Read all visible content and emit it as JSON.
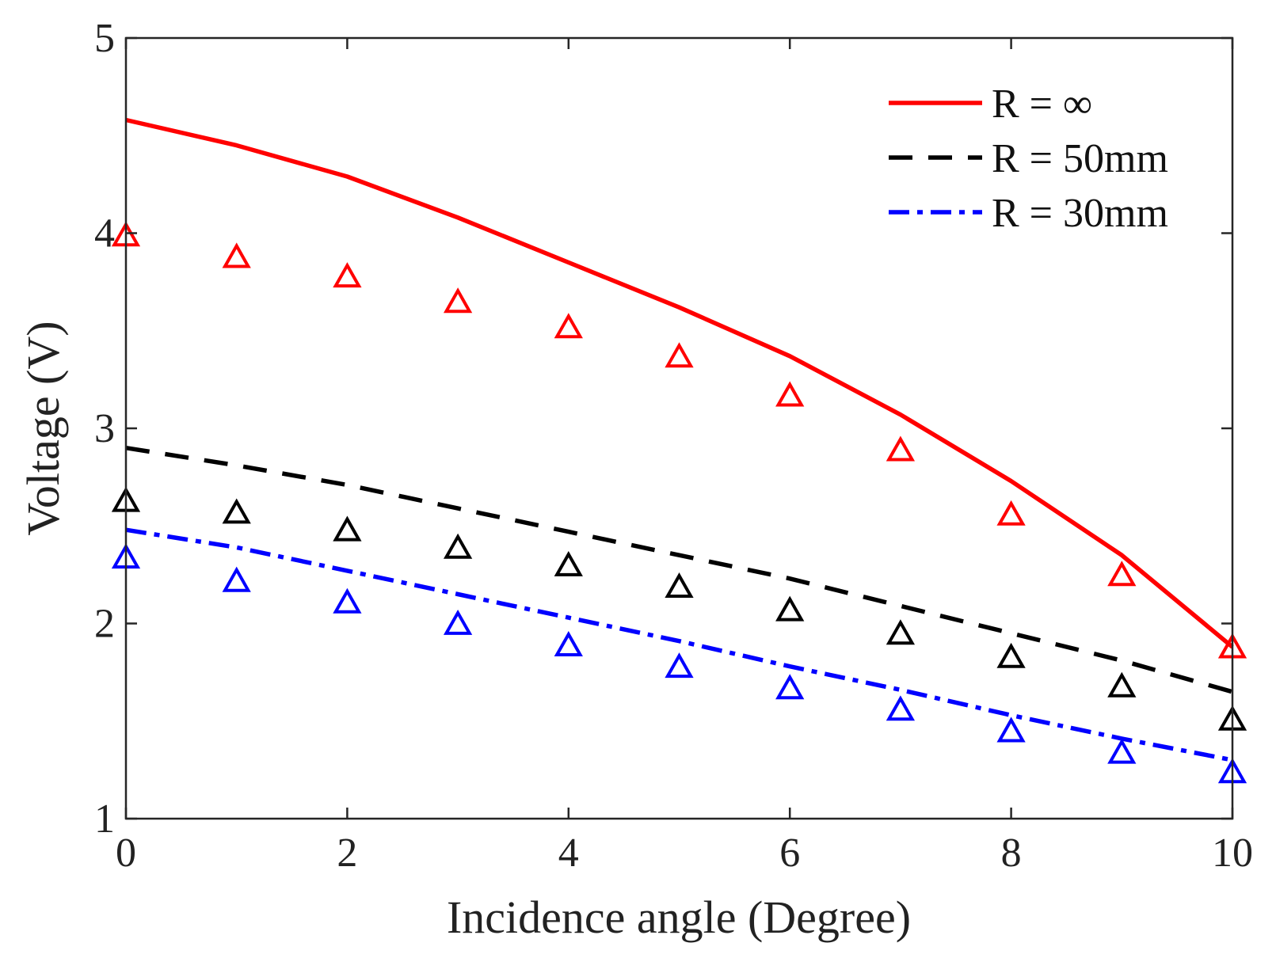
{
  "chart_data": {
    "type": "line",
    "title": "",
    "xlabel": "Incidence angle (Degree)",
    "ylabel": "Voltage (V)",
    "xlim": [
      0,
      10
    ],
    "ylim": [
      1,
      5
    ],
    "xticks": [
      0,
      2,
      4,
      6,
      8,
      10
    ],
    "yticks": [
      1,
      2,
      3,
      4,
      5
    ],
    "grid": false,
    "legend_position": "top-right",
    "series": [
      {
        "name": "R = ∞",
        "color": "#ff0000",
        "line_style": "solid",
        "x": [
          0,
          1,
          2,
          3,
          4,
          5,
          6,
          7,
          8,
          9,
          10
        ],
        "values": [
          4.58,
          4.45,
          4.29,
          4.08,
          3.85,
          3.62,
          3.37,
          3.07,
          2.73,
          2.35,
          1.88
        ]
      },
      {
        "name": "R = 50mm",
        "color": "#000000",
        "line_style": "dashed",
        "x": [
          0,
          1,
          2,
          3,
          4,
          5,
          6,
          7,
          8,
          9,
          10
        ],
        "values": [
          2.9,
          2.81,
          2.71,
          2.59,
          2.47,
          2.35,
          2.23,
          2.09,
          1.95,
          1.81,
          1.65
        ]
      },
      {
        "name": "R = 30mm",
        "color": "#0000ff",
        "line_style": "dashdot",
        "x": [
          0,
          1,
          2,
          3,
          4,
          5,
          6,
          7,
          8,
          9,
          10
        ],
        "values": [
          2.48,
          2.39,
          2.27,
          2.15,
          2.03,
          1.91,
          1.78,
          1.66,
          1.53,
          1.41,
          1.3
        ]
      }
    ],
    "markers": [
      {
        "series": "R = ∞",
        "color": "#ff0000",
        "shape": "triangle",
        "x": [
          0,
          1,
          2,
          3,
          4,
          5,
          6,
          7,
          8,
          9,
          10
        ],
        "values": [
          3.98,
          3.87,
          3.77,
          3.64,
          3.51,
          3.36,
          3.16,
          2.88,
          2.55,
          2.24,
          1.87
        ]
      },
      {
        "series": "R = 50mm",
        "color": "#000000",
        "shape": "triangle",
        "x": [
          0,
          1,
          2,
          3,
          4,
          5,
          6,
          7,
          8,
          9,
          10
        ],
        "values": [
          2.62,
          2.56,
          2.47,
          2.38,
          2.29,
          2.18,
          2.06,
          1.94,
          1.82,
          1.67,
          1.5
        ]
      },
      {
        "series": "R = 30mm",
        "color": "#0000ff",
        "shape": "triangle",
        "x": [
          0,
          1,
          2,
          3,
          4,
          5,
          6,
          7,
          8,
          9,
          10
        ],
        "values": [
          2.33,
          2.21,
          2.1,
          1.99,
          1.88,
          1.77,
          1.66,
          1.55,
          1.44,
          1.33,
          1.23
        ]
      }
    ]
  }
}
